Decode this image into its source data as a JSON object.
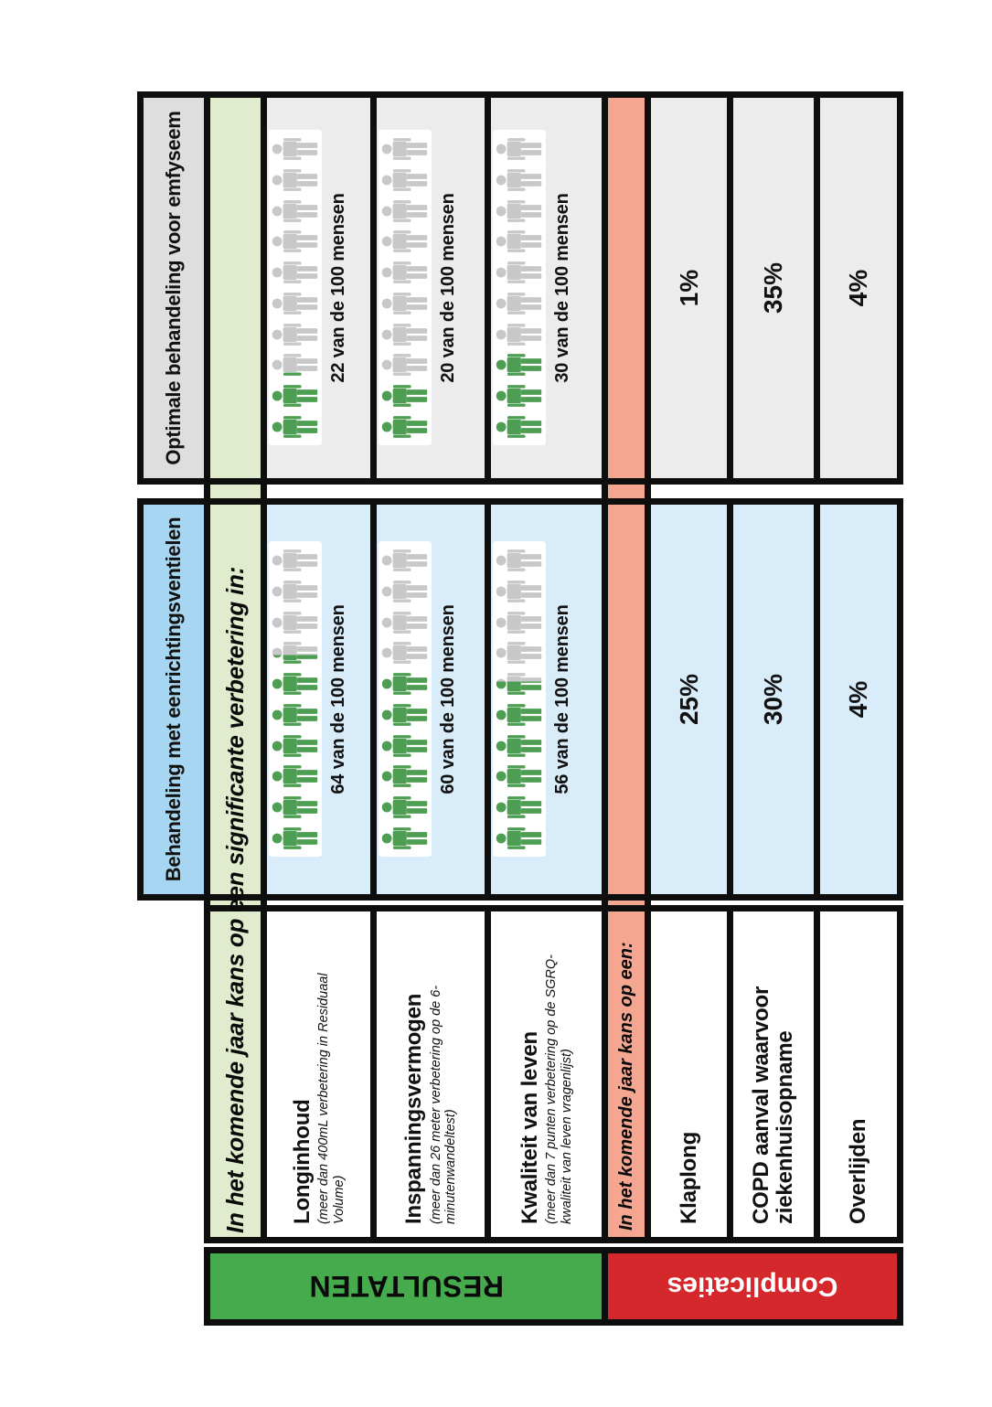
{
  "columns": {
    "valves": {
      "label": "Behandeling met eenrichtingsventielen"
    },
    "optimal": {
      "label": "Optimale behandeling voor emfyseem"
    }
  },
  "bands": {
    "results": "In het komende jaar kans op een significante verbetering in:",
    "complications": "In het komende jaar kans op een:"
  },
  "groups": {
    "results": "RESULTATEN",
    "complications": "Complicaties"
  },
  "results": [
    {
      "name": "Longinhoud",
      "detail": "(meer dan 400mL verbetering in Residuaal Volume)",
      "valves": {
        "value": 64,
        "label": "64 van de 100 mensen"
      },
      "optimal": {
        "value": 22,
        "label": "22 van de 100 mensen"
      }
    },
    {
      "name": "Inspanningsvermogen",
      "detail": "(meer dan 26 meter verbetering op de 6-minutenwandeltest)",
      "valves": {
        "value": 60,
        "label": "60 van de 100 mensen"
      },
      "optimal": {
        "value": 20,
        "label": "20 van de 100 mensen"
      }
    },
    {
      "name": "Kwaliteit van leven",
      "detail": "(meer dan 7 punten verbetering op de SGRQ-kwaliteit van leven vragenlijst)",
      "valves": {
        "value": 56,
        "label": "56 van de 100 mensen"
      },
      "optimal": {
        "value": 30,
        "label": "30 van de 100 mensen"
      }
    }
  ],
  "complications": [
    {
      "name": "Klaplong",
      "valves": "25%",
      "optimal": "1%"
    },
    {
      "name": "COPD aanval waarvoor ziekenhuisopname",
      "valves": "30%",
      "optimal": "35%"
    },
    {
      "name": "Overlijden",
      "valves": "4%",
      "optimal": "4%"
    }
  ],
  "colors": {
    "person_green": "#4d9e52",
    "person_gray": "#c8c8c8",
    "bar_results": "#46ab4d",
    "bar_complications": "#d5282d",
    "band_results": "#e1ebcd",
    "band_complications": "#f4a691",
    "header_valves": "#a6d6f2",
    "cell_valves": "#d9ecf9",
    "header_optimal": "#dedede",
    "cell_optimal": "#ececec"
  }
}
